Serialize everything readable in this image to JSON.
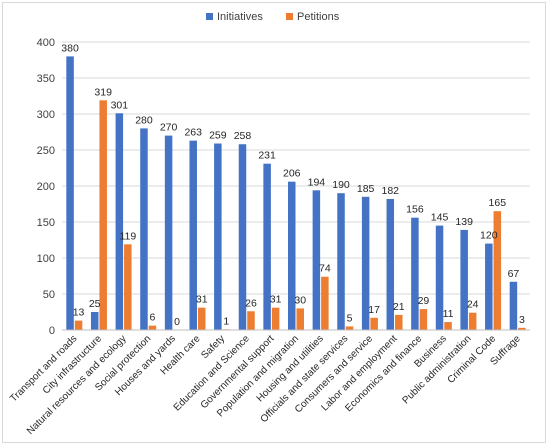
{
  "chart_data": {
    "type": "bar",
    "title": "",
    "xlabel": "",
    "ylabel": "",
    "ylim": [
      0,
      400
    ],
    "yticks": [
      0,
      50,
      100,
      150,
      200,
      250,
      300,
      350,
      400
    ],
    "grid": "horizontal",
    "legend_position": "top-center",
    "categories": [
      "Transport and roads",
      "City infrastructure",
      "Natural resources and ecology",
      "Social protection",
      "Houses and yards",
      "Health care",
      "Safety",
      "Education and Science",
      "Governmental support",
      "Population and migration",
      "Housing and utilities",
      "Officials and state services",
      "Consumers and service",
      "Labor and employment",
      "Economics and finance",
      "Business",
      "Public administration",
      "Criminal Code",
      "Suffrage"
    ],
    "series": [
      {
        "name": "Initiatives",
        "color": "#4472c4",
        "values": [
          380,
          25,
          301,
          280,
          270,
          263,
          259,
          258,
          231,
          206,
          194,
          190,
          185,
          182,
          156,
          145,
          139,
          120,
          67
        ]
      },
      {
        "name": "Petitions",
        "color": "#ed7d31",
        "values": [
          13,
          319,
          119,
          6,
          0,
          31,
          1,
          26,
          31,
          30,
          74,
          5,
          17,
          21,
          29,
          11,
          24,
          165,
          3
        ]
      }
    ]
  }
}
